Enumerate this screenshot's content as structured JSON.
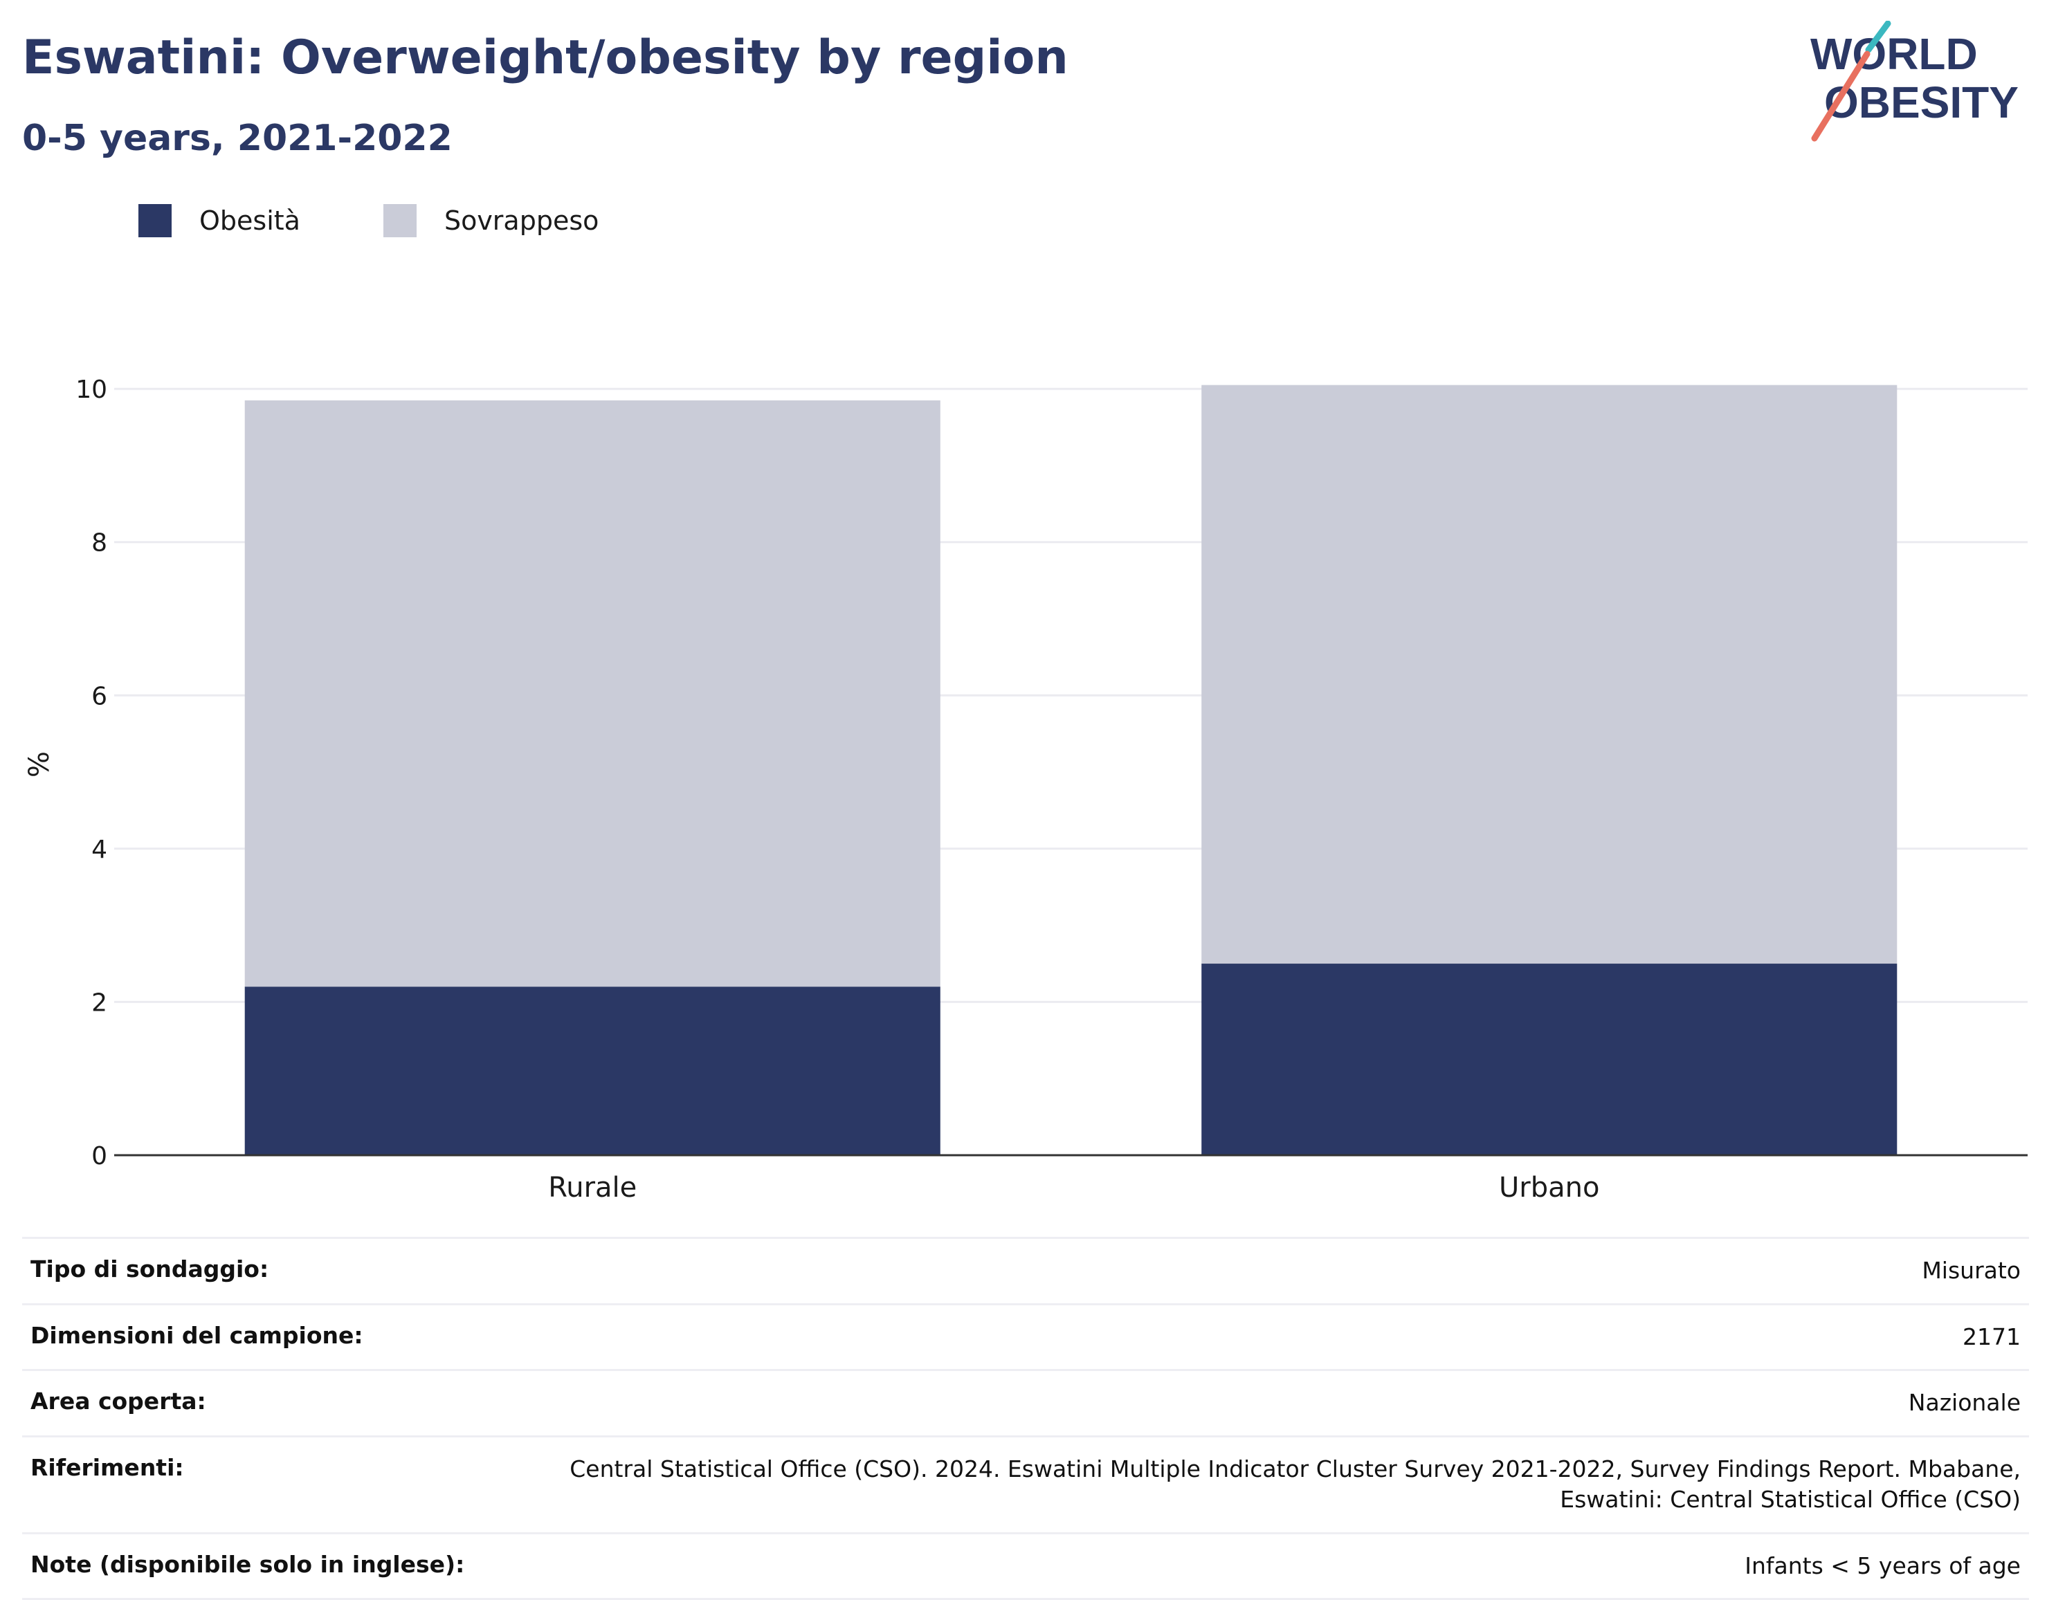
{
  "header": {
    "title": "Eswatini: Overweight/obesity by region",
    "subtitle": "0-5 years, 2021-2022"
  },
  "logo": {
    "line1": "WORLD",
    "line2": "OBESITY",
    "accent_teal": "#3bb8c0",
    "accent_coral": "#e8705f",
    "text_color": "#2b3865"
  },
  "legend": [
    {
      "label": "Obesità",
      "color": "#2b3865"
    },
    {
      "label": "Sovrappeso",
      "color": "#caccd8"
    }
  ],
  "chart_data": {
    "type": "bar",
    "stacked": true,
    "categories": [
      "Rurale",
      "Urbano"
    ],
    "series": [
      {
        "name": "Obesità",
        "values": [
          2.2,
          2.5
        ],
        "color": "#2b3865"
      },
      {
        "name": "Sovrappeso",
        "values": [
          7.65,
          7.55
        ],
        "color": "#caccd8"
      }
    ],
    "ylabel": "%",
    "ylim": [
      0,
      10.2
    ],
    "yticks": [
      0,
      2,
      4,
      6,
      8,
      10
    ],
    "grid": true,
    "legend_position": "top-left"
  },
  "meta": [
    {
      "key": "Tipo di sondaggio:",
      "value": "Misurato"
    },
    {
      "key": "Dimensioni del campione:",
      "value": "2171"
    },
    {
      "key": "Area coperta:",
      "value": "Nazionale"
    },
    {
      "key": "Riferimenti:",
      "value": "Central Statistical Office (CSO). 2024. Eswatini Multiple Indicator Cluster Survey 2021-2022, Survey Findings Report. Mbabane, Eswatini: Central Statistical Office (CSO)"
    },
    {
      "key": "Note (disponibile solo in inglese):",
      "value": "Infants < 5 years of age"
    }
  ]
}
